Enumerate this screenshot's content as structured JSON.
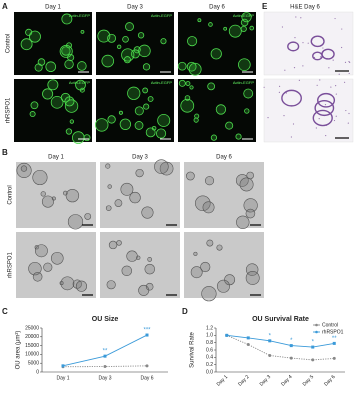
{
  "panels": {
    "a": {
      "label": "A",
      "columns": [
        "Day 1",
        "Day 3",
        "Day 6"
      ],
      "rows": [
        "Control",
        "rhRSPO1"
      ],
      "marker": "Actin-EGFP"
    },
    "b": {
      "label": "B",
      "columns": [
        "Day 1",
        "Day 3",
        "Day 6"
      ],
      "rows": [
        "Control",
        "rhRSPO1"
      ]
    },
    "e": {
      "label": "E",
      "title": "H&E Day 6"
    },
    "c": {
      "label": "C"
    },
    "d": {
      "label": "D"
    }
  },
  "chart_data": [
    {
      "type": "line",
      "title": "OU Size",
      "y_label": "OU area (μm²)",
      "categories": [
        "Day 1",
        "Day 3",
        "Day 6"
      ],
      "series": [
        {
          "name": "Control",
          "color": "#888888",
          "line_style": "dotted",
          "values": [
            3000,
            3100,
            3500
          ]
        },
        {
          "name": "rhRSPO1",
          "color": "#3a9ad9",
          "values": [
            3500,
            9000,
            21000
          ]
        }
      ],
      "ylim": [
        0,
        25000
      ],
      "yticks": [
        0,
        5000,
        10000,
        15000,
        20000,
        25000
      ],
      "annotations": [
        {
          "category": "Day 3",
          "text": "**"
        },
        {
          "category": "Day 6",
          "text": "***"
        }
      ],
      "legend": false
    },
    {
      "type": "line",
      "title": "OU Survival Rate",
      "y_label": "Survival Rate",
      "categories": [
        "Day 1",
        "Day 2",
        "Day 3",
        "Day 4",
        "Day 5",
        "Day 6"
      ],
      "series": [
        {
          "name": "Control",
          "color": "#888888",
          "line_style": "dotted",
          "values": [
            1.0,
            0.75,
            0.45,
            0.38,
            0.33,
            0.37
          ]
        },
        {
          "name": "rhRSPO1",
          "color": "#3a9ad9",
          "values": [
            1.0,
            0.93,
            0.85,
            0.72,
            0.68,
            0.78
          ]
        }
      ],
      "ylim": [
        0,
        1.2
      ],
      "yticks": [
        {
          "value": 0,
          "label": "0.0"
        },
        0.2,
        0.4,
        0.6,
        0.8,
        {
          "value": 1,
          "label": "1.0"
        },
        1.2
      ],
      "annotations": [
        {
          "category": "Day 3",
          "text": "*"
        },
        {
          "category": "Day 4",
          "text": "*"
        },
        {
          "category": "Day 5",
          "text": "*"
        },
        {
          "category": "Day 6",
          "text": "**"
        }
      ],
      "legend": "upper right"
    }
  ]
}
